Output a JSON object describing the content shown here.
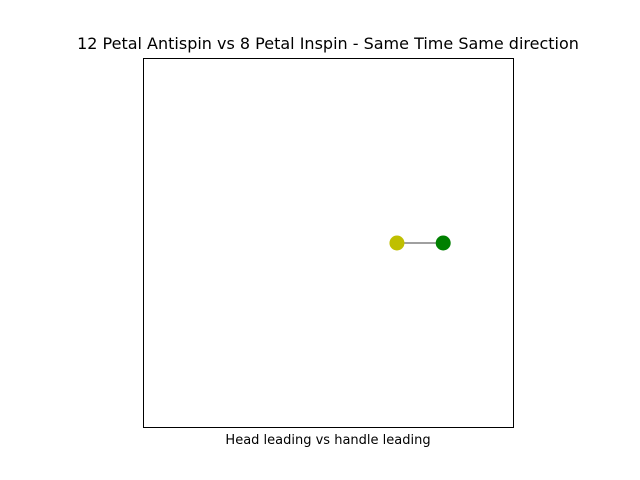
{
  "chart_data": {
    "type": "scatter",
    "title": "12 Petal Antispin vs 8 Petal Inspin - Same Time Same direction",
    "xlabel": "Head leading vs handle leading",
    "ylabel": "",
    "xlim": [
      -1,
      1
    ],
    "ylim": [
      -1,
      1
    ],
    "grid": false,
    "axis_ticks": false,
    "points": [
      {
        "x": 0.37,
        "y": 0.0,
        "color": "#bfbf00"
      },
      {
        "x": 0.62,
        "y": 0.0,
        "color": "#008000"
      }
    ],
    "connector": {
      "from": 0,
      "to": 1,
      "color": "#000000"
    }
  }
}
